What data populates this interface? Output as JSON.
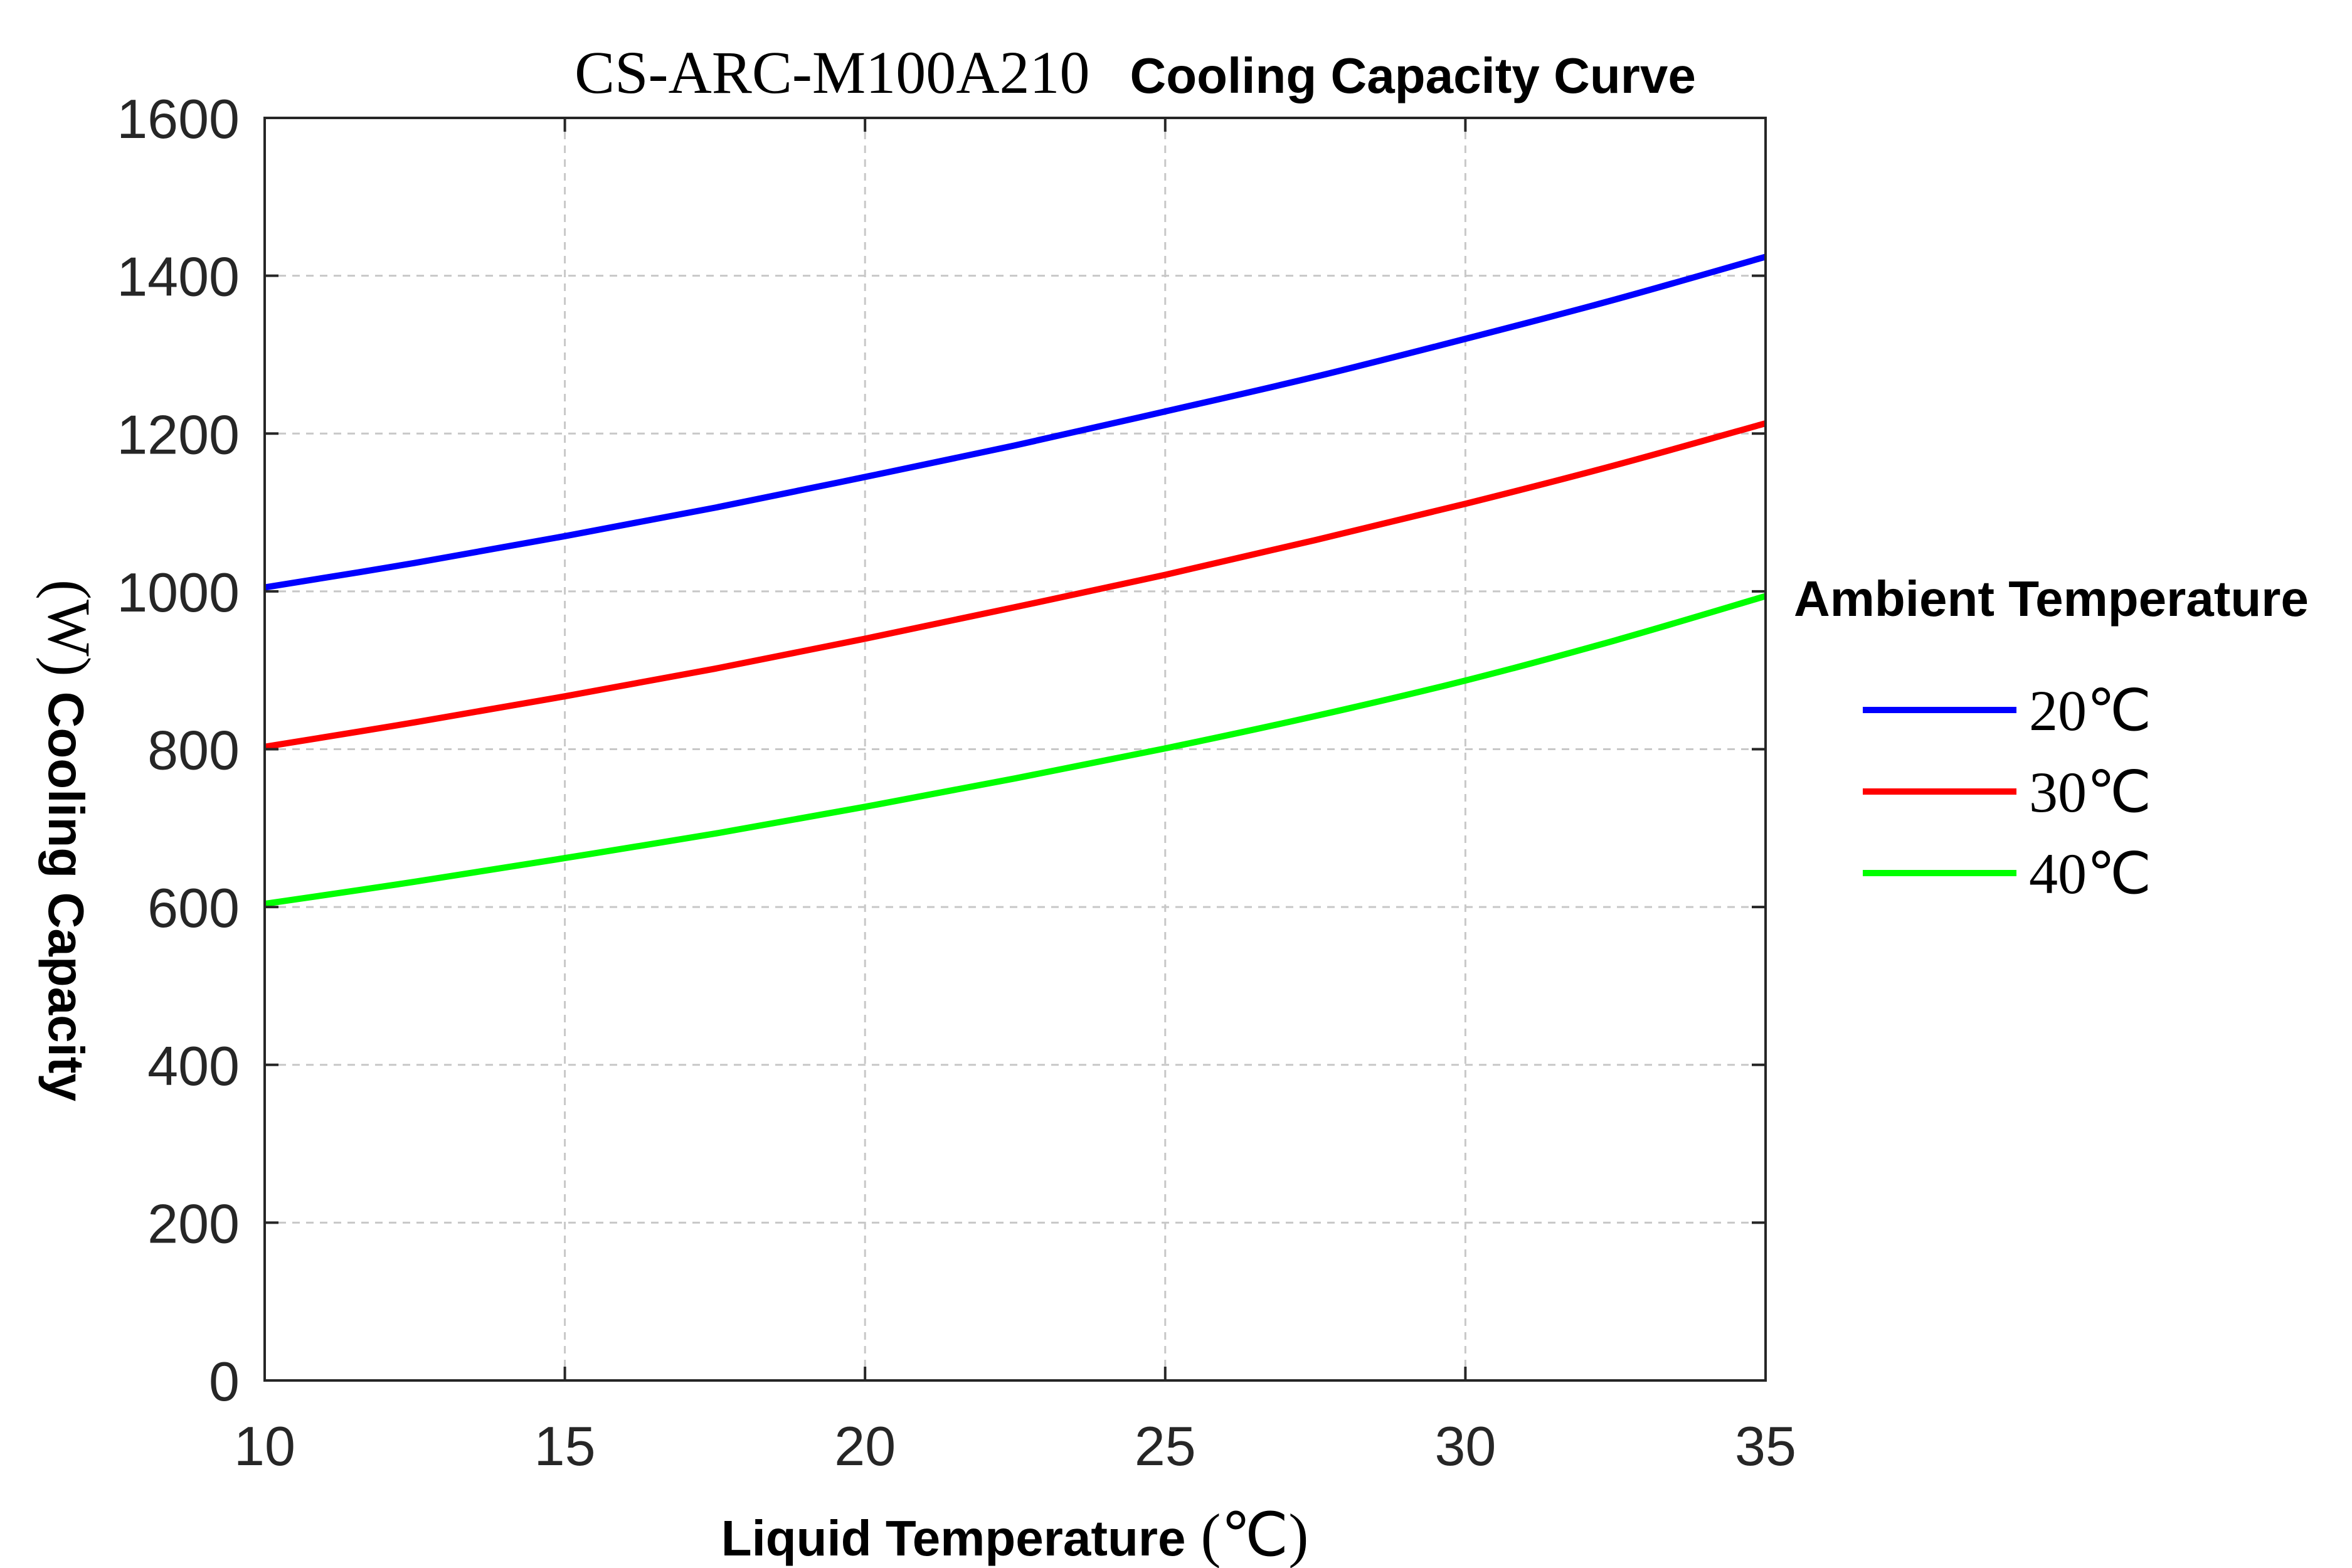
{
  "chart_data": {
    "type": "line",
    "title_model": "CS-ARC-M100A210",
    "title_text": "Cooling Capacity Curve",
    "xlabel_text": "Liquid Temperature",
    "xlabel_unit": "(℃)",
    "ylabel_text": "Cooling Capacity",
    "ylabel_unit": "(W)",
    "xlim": [
      10,
      35
    ],
    "ylim": [
      0,
      1600
    ],
    "xticks": [
      10,
      15,
      20,
      25,
      30,
      35
    ],
    "yticks": [
      0,
      200,
      400,
      600,
      800,
      1000,
      1200,
      1400,
      1600
    ],
    "grid": true,
    "legend_title": "Ambient Temperature",
    "legend_position": "right",
    "x": [
      10,
      12.5,
      15,
      17.5,
      20,
      22.5,
      25,
      27.5,
      30,
      32.5,
      35
    ],
    "series": [
      {
        "name": "20℃",
        "color": "#0000ff",
        "values": [
          1005,
          1036,
          1070,
          1106,
          1145,
          1185,
          1228,
          1272,
          1320,
          1370,
          1424
        ]
      },
      {
        "name": "30℃",
        "color": "#ff0000",
        "values": [
          803,
          834,
          867,
          902,
          940,
          980,
          1021,
          1065,
          1111,
          1160,
          1213
        ]
      },
      {
        "name": "40℃",
        "color": "#00ff00",
        "values": [
          604,
          632,
          662,
          693,
          727,
          763,
          801,
          842,
          887,
          938,
          994
        ]
      }
    ]
  }
}
